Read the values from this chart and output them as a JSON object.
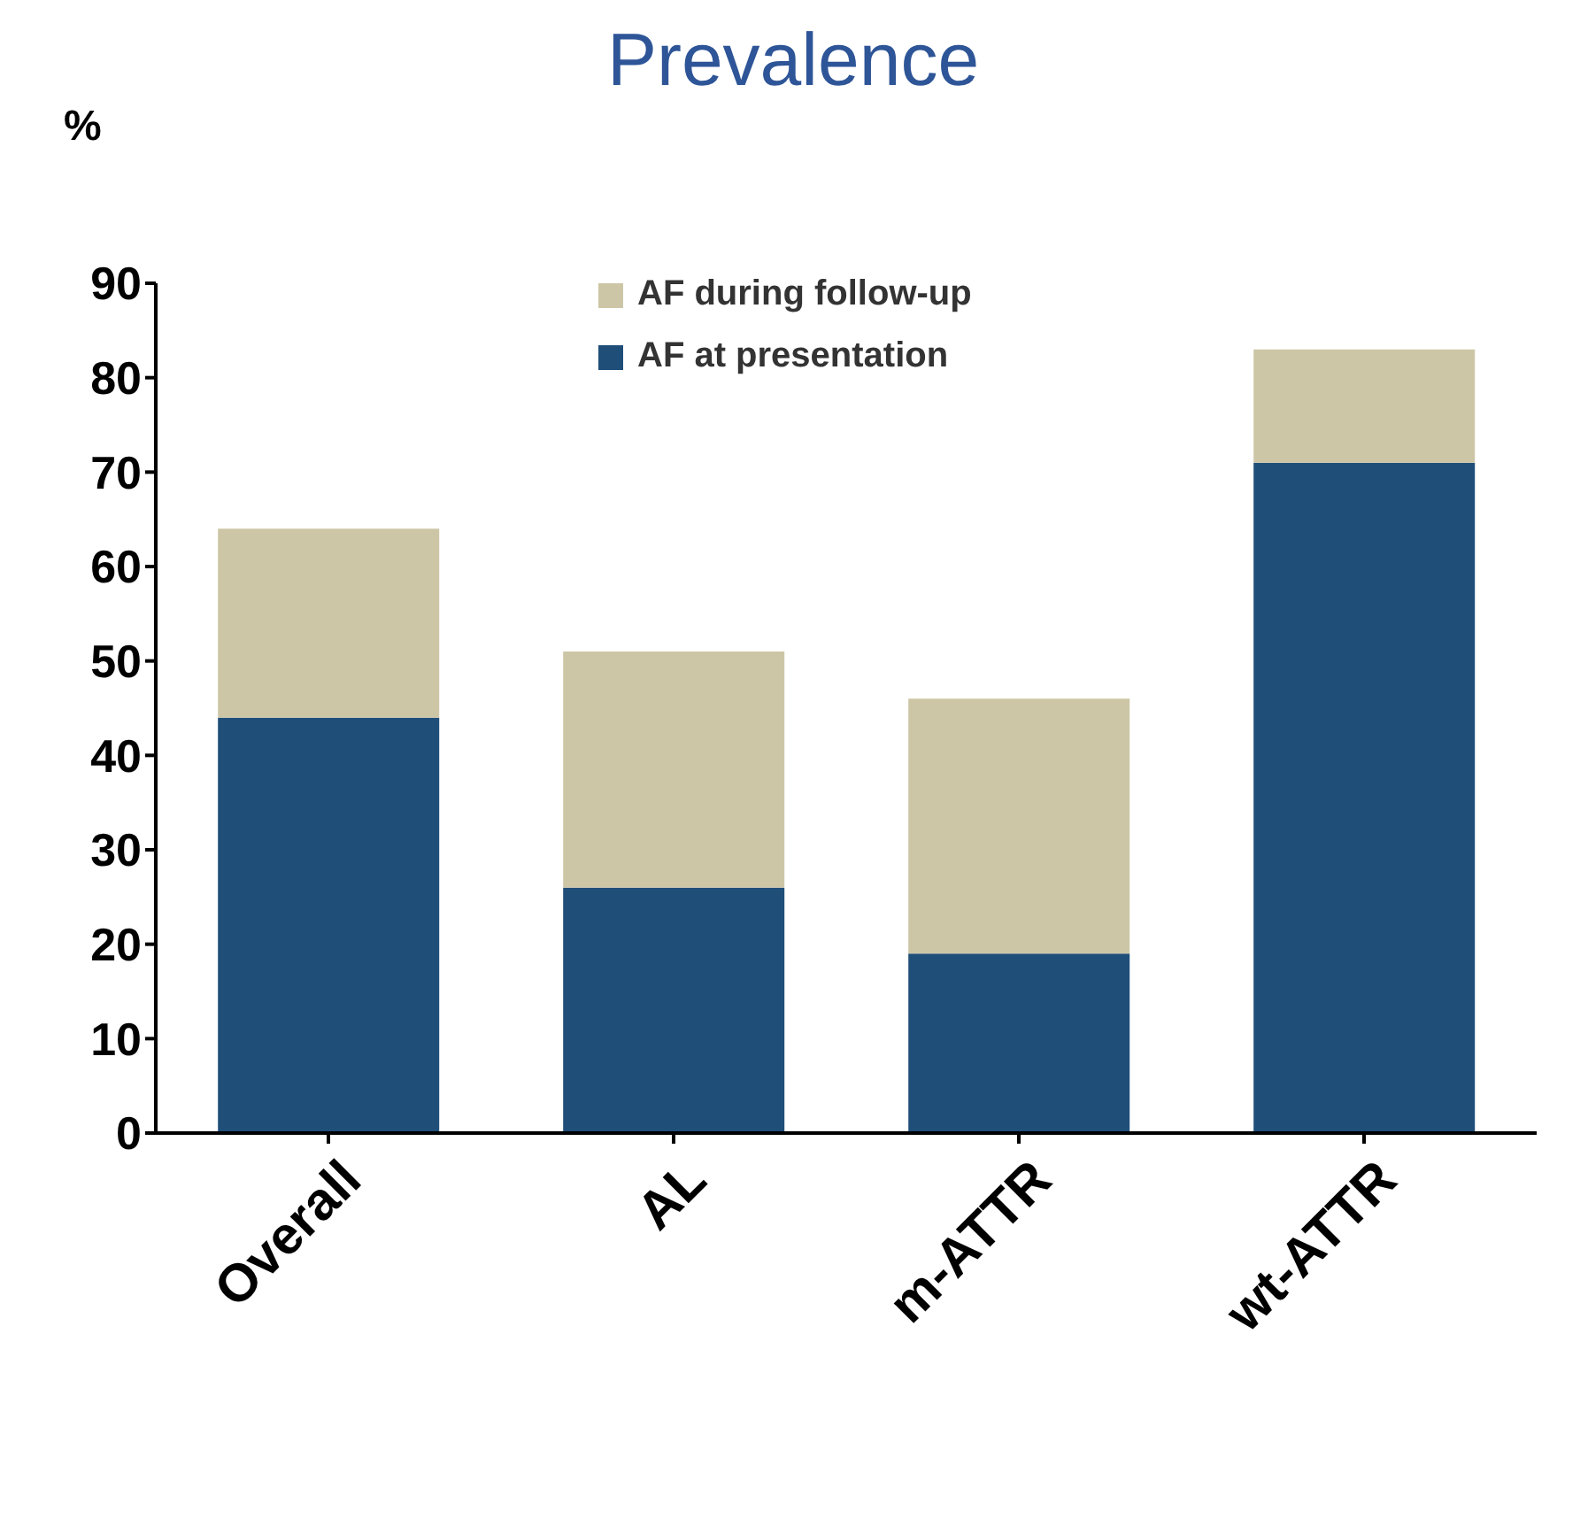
{
  "chart_data": {
    "type": "bar",
    "title": "Prevalence",
    "ylabel": "%",
    "categories": [
      "Overall",
      "AL",
      "m-ATTR",
      "wt-ATTR"
    ],
    "stacked": true,
    "series": [
      {
        "name": "AF at presentation",
        "color": "#1f4e79",
        "values": [
          44,
          26,
          19,
          71
        ]
      },
      {
        "name": "AF during follow-up",
        "color": "#cdc6a6",
        "values": [
          20,
          25,
          27,
          12
        ]
      }
    ],
    "ylim": [
      0,
      90
    ],
    "yticks": [
      0,
      10,
      20,
      30,
      40,
      50,
      60,
      70,
      80,
      90
    ],
    "grid": false,
    "legend": "top"
  }
}
